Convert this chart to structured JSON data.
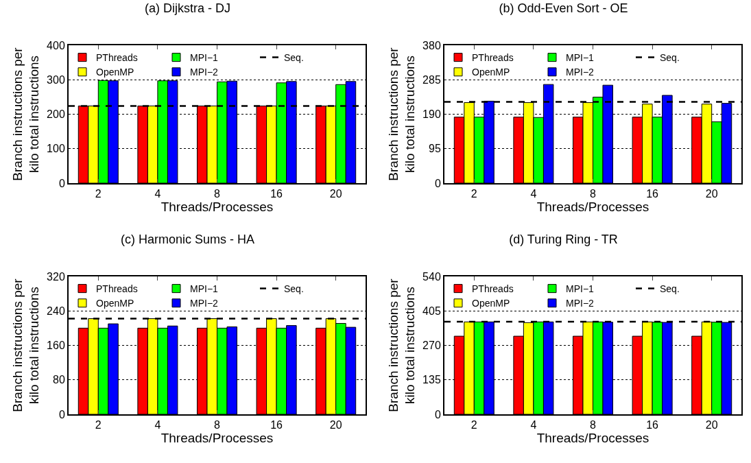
{
  "chart_data": [
    {
      "type": "bar",
      "title": "(a) Dijkstra - DJ",
      "xlabel": "Threads/Processes",
      "ylabel": "Branch instructions per\nkilo total instructions",
      "categories": [
        "2",
        "4",
        "8",
        "16",
        "20"
      ],
      "series": [
        {
          "name": "PThreads",
          "color": "#ff0000",
          "values": [
            224,
            224,
            224,
            224,
            224
          ]
        },
        {
          "name": "OpenMP",
          "color": "#ffff00",
          "values": [
            224,
            224,
            224,
            224,
            224
          ]
        },
        {
          "name": "MPI−1",
          "color": "#00ff00",
          "values": [
            298,
            297,
            294,
            291,
            286
          ]
        },
        {
          "name": "MPI−2",
          "color": "#0000ff",
          "values": [
            297,
            297,
            296,
            295,
            295
          ]
        }
      ],
      "ref_lines": [
        {
          "axis": "y",
          "value": 224,
          "label": "Seq.",
          "color": "#000000",
          "line_style": "dashed"
        }
      ],
      "ylim": [
        0,
        400
      ],
      "yticks": [
        0,
        100,
        200,
        300,
        400
      ],
      "grid": "y",
      "legend": "top"
    },
    {
      "type": "bar",
      "title": "(b) Odd-Even Sort - OE",
      "xlabel": "Threads/Processes",
      "ylabel": "Branch instructions per\nkilo total instructions",
      "categories": [
        "2",
        "4",
        "8",
        "16",
        "20"
      ],
      "series": [
        {
          "name": "PThreads",
          "color": "#ff0000",
          "values": [
            182,
            182,
            182,
            182,
            182
          ]
        },
        {
          "name": "OpenMP",
          "color": "#ffff00",
          "values": [
            222,
            222,
            222,
            218,
            218
          ]
        },
        {
          "name": "MPI−1",
          "color": "#00ff00",
          "values": [
            182,
            181,
            237,
            182,
            169
          ]
        },
        {
          "name": "MPI−2",
          "color": "#0000ff",
          "values": [
            226,
            272,
            270,
            242,
            220
          ]
        }
      ],
      "ref_lines": [
        {
          "axis": "y",
          "value": 224,
          "label": "Seq.",
          "color": "#000000",
          "line_style": "dashed"
        }
      ],
      "ylim": [
        0,
        380
      ],
      "yticks": [
        0,
        95,
        190,
        285,
        380
      ],
      "grid": "y",
      "legend": "top"
    },
    {
      "type": "bar",
      "title": "(c) Harmonic Sums - HA",
      "xlabel": "Threads/Processes",
      "ylabel": "Branch instructions per\nkilo total instructions",
      "categories": [
        "2",
        "4",
        "8",
        "16",
        "20"
      ],
      "series": [
        {
          "name": "PThreads",
          "color": "#ff0000",
          "values": [
            200,
            200,
            200,
            200,
            200
          ]
        },
        {
          "name": "OpenMP",
          "color": "#ffff00",
          "values": [
            222,
            222,
            222,
            222,
            222
          ]
        },
        {
          "name": "MPI−1",
          "color": "#00ff00",
          "values": [
            200,
            200,
            200,
            200,
            211
          ]
        },
        {
          "name": "MPI−2",
          "color": "#0000ff",
          "values": [
            210,
            205,
            203,
            206,
            202
          ]
        }
      ],
      "ref_lines": [
        {
          "axis": "y",
          "value": 222,
          "label": "Seq.",
          "color": "#000000",
          "line_style": "dashed"
        }
      ],
      "ylim": [
        0,
        320
      ],
      "yticks": [
        0,
        80,
        160,
        240,
        320
      ],
      "grid": "y",
      "legend": "top"
    },
    {
      "type": "bar",
      "title": "(d) Turing Ring - TR",
      "xlabel": "Threads/Processes",
      "ylabel": "Branch instructions per\nkilo total instructions",
      "categories": [
        "2",
        "4",
        "8",
        "16",
        "20"
      ],
      "series": [
        {
          "name": "PThreads",
          "color": "#ff0000",
          "values": [
            306,
            306,
            306,
            306,
            306
          ]
        },
        {
          "name": "OpenMP",
          "color": "#ffff00",
          "values": [
            362,
            359,
            362,
            362,
            362
          ]
        },
        {
          "name": "MPI−1",
          "color": "#00ff00",
          "values": [
            362,
            362,
            362,
            361,
            361
          ]
        },
        {
          "name": "MPI−2",
          "color": "#0000ff",
          "values": [
            362,
            362,
            361,
            360,
            360
          ]
        }
      ],
      "ref_lines": [
        {
          "axis": "y",
          "value": 363,
          "label": "Seq.",
          "color": "#000000",
          "line_style": "dashed"
        }
      ],
      "ylim": [
        0,
        540
      ],
      "yticks": [
        0,
        135,
        270,
        405,
        540
      ],
      "grid": "y",
      "legend": "top"
    }
  ]
}
